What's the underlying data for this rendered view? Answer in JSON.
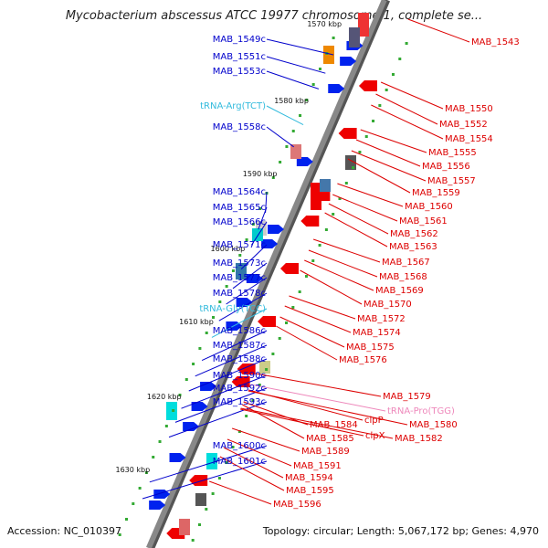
{
  "title": "Mycobacterium abscessus ATCC 19977 chromosome 1, complete se...",
  "footer": {
    "accession": "Accession: NC_010397",
    "summary": "Topology: circular; Length: 5,067,172 bp; Genes: 4,970"
  },
  "colors": {
    "left_label": "#0000cc",
    "right_label": "#dd0000",
    "trna_left": "#33bbdd",
    "trna_right": "#ee88bb",
    "forward_gene": "#0022ee",
    "reverse_gene": "#ee0000",
    "backbone": "#888888"
  },
  "kbp_marks": [
    {
      "label": "1570 kbp"
    },
    {
      "label": "1580 kbp"
    },
    {
      "label": "1590 kbp"
    },
    {
      "label": "1600 kbp"
    },
    {
      "label": "1610 kbp"
    },
    {
      "label": "1620 kbp"
    },
    {
      "label": "1630 kbp"
    }
  ],
  "left_labels": [
    {
      "text": "MAB_1549c",
      "type": "gene"
    },
    {
      "text": "MAB_1551c",
      "type": "gene"
    },
    {
      "text": "MAB_1553c",
      "type": "gene"
    },
    {
      "text": "tRNA-Arg(TCT)",
      "type": "trna"
    },
    {
      "text": "MAB_1558c",
      "type": "gene"
    },
    {
      "text": "MAB_1564c",
      "type": "gene"
    },
    {
      "text": "MAB_1565c",
      "type": "gene"
    },
    {
      "text": "MAB_1566c",
      "type": "gene"
    },
    {
      "text": "MAB_1571c",
      "type": "gene"
    },
    {
      "text": "MAB_1573c",
      "type": "gene"
    },
    {
      "text": "MAB_1577c",
      "type": "gene"
    },
    {
      "text": "MAB_1578c",
      "type": "gene"
    },
    {
      "text": "tRNA-Gly(TCC)",
      "type": "trna"
    },
    {
      "text": "MAB_1586c",
      "type": "gene"
    },
    {
      "text": "MAB_1587c",
      "type": "gene"
    },
    {
      "text": "MAB_1588c",
      "type": "gene"
    },
    {
      "text": "MAB_1590c",
      "type": "gene"
    },
    {
      "text": "MAB_1592c",
      "type": "gene"
    },
    {
      "text": "MAB_1593c",
      "type": "gene"
    },
    {
      "text": "MAB_1600c",
      "type": "gene"
    },
    {
      "text": "MAB_1601c",
      "type": "gene"
    }
  ],
  "right_labels": [
    {
      "text": "MAB_1543",
      "type": "gene"
    },
    {
      "text": "MAB_1550",
      "type": "gene"
    },
    {
      "text": "MAB_1552",
      "type": "gene"
    },
    {
      "text": "MAB_1554",
      "type": "gene"
    },
    {
      "text": "MAB_1555",
      "type": "gene"
    },
    {
      "text": "MAB_1556",
      "type": "gene"
    },
    {
      "text": "MAB_1557",
      "type": "gene"
    },
    {
      "text": "MAB_1559",
      "type": "gene"
    },
    {
      "text": "MAB_1560",
      "type": "gene"
    },
    {
      "text": "MAB_1561",
      "type": "gene"
    },
    {
      "text": "MAB_1562",
      "type": "gene"
    },
    {
      "text": "MAB_1563",
      "type": "gene"
    },
    {
      "text": "MAB_1567",
      "type": "gene"
    },
    {
      "text": "MAB_1568",
      "type": "gene"
    },
    {
      "text": "MAB_1569",
      "type": "gene"
    },
    {
      "text": "MAB_1570",
      "type": "gene"
    },
    {
      "text": "MAB_1572",
      "type": "gene"
    },
    {
      "text": "MAB_1574",
      "type": "gene"
    },
    {
      "text": "MAB_1575",
      "type": "gene"
    },
    {
      "text": "MAB_1576",
      "type": "gene"
    },
    {
      "text": "MAB_1579",
      "type": "gene"
    },
    {
      "text": "tRNA-Pro(TGG)",
      "type": "trna"
    },
    {
      "text": "clpP",
      "type": "gene"
    },
    {
      "text": "MAB_1580",
      "type": "gene"
    },
    {
      "text": "MAB_1584",
      "type": "gene"
    },
    {
      "text": "clpX",
      "type": "gene"
    },
    {
      "text": "MAB_1582",
      "type": "gene"
    },
    {
      "text": "MAB_1585",
      "type": "gene"
    },
    {
      "text": "MAB_1589",
      "type": "gene"
    },
    {
      "text": "MAB_1591",
      "type": "gene"
    },
    {
      "text": "MAB_1594",
      "type": "gene"
    },
    {
      "text": "MAB_1595",
      "type": "gene"
    },
    {
      "text": "MAB_1596",
      "type": "gene"
    }
  ]
}
